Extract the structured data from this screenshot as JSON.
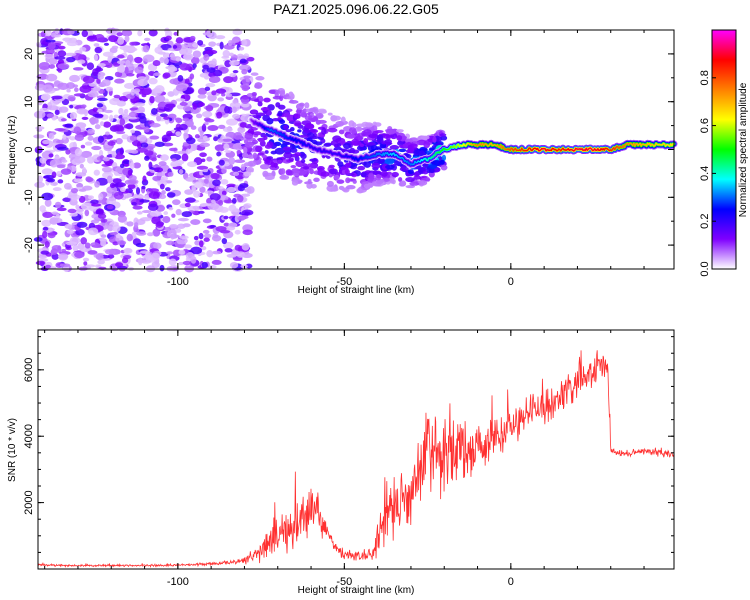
{
  "title": "PAZ1.2025.096.06.22.G05",
  "chart_data": [
    {
      "type": "heatmap",
      "xlabel": "Height of straight line (km)",
      "ylabel": "Frequency (Hz)",
      "xlim": [
        -142,
        49
      ],
      "ylim": [
        -25,
        25
      ],
      "xticks": [
        -100,
        -50,
        0
      ],
      "xtick_labels": [
        "-100",
        "-50",
        "0"
      ],
      "yticks": [
        -20,
        -10,
        0,
        10,
        20
      ],
      "ytick_labels": [
        "-20",
        "-10",
        "0",
        "10",
        "20"
      ],
      "colorbar": {
        "label": "Normalized spectral amplitude",
        "range": [
          0,
          1
        ],
        "ticks": [
          0,
          0.2,
          0.4,
          0.6,
          0.8
        ],
        "tick_labels": [
          "0.0",
          "0.2",
          "0.4",
          "0.6",
          "0.8"
        ],
        "colors": [
          "#ffffff",
          "#7f00ff",
          "#0000ff",
          "#00ffff",
          "#00ff00",
          "#ffff00",
          "#ff8000",
          "#ff0000",
          "#ff00ff"
        ]
      },
      "ridge": {
        "x": [
          -78,
          -72,
          -65,
          -58,
          -52,
          -46,
          -40,
          -35,
          -30,
          -25,
          -20,
          -15,
          -10,
          -5,
          0,
          5,
          10,
          15,
          20,
          25,
          30,
          35,
          40,
          49
        ],
        "freq": [
          6,
          4,
          2,
          0,
          -1,
          -2,
          -1,
          -1,
          -3,
          -2,
          0,
          1,
          1,
          1,
          0,
          0,
          0,
          0,
          0,
          0,
          0,
          1,
          1,
          1
        ],
        "amplitude": [
          0.1,
          0.3,
          0.25,
          0.2,
          0.2,
          0.25,
          0.3,
          0.35,
          0.3,
          0.4,
          0.5,
          0.6,
          0.75,
          0.7,
          0.8,
          0.85,
          0.9,
          0.85,
          0.9,
          0.9,
          0.85,
          0.75,
          0.7,
          0.65
        ]
      },
      "grid": false
    },
    {
      "type": "line",
      "xlabel": "Height of straight line (km)",
      "ylabel": "SNR (10 * v/v)",
      "xlim": [
        -142,
        49
      ],
      "ylim": [
        0,
        7200
      ],
      "xticks": [
        -100,
        -50,
        0
      ],
      "xtick_labels": [
        "-100",
        "-50",
        "0"
      ],
      "yticks": [
        2000,
        4000,
        6000
      ],
      "ytick_labels": [
        "2000",
        "4000",
        "6000"
      ],
      "series": [
        {
          "color": "#ff3030",
          "x": [
            -142,
            -130,
            -120,
            -110,
            -100,
            -90,
            -85,
            -80,
            -77,
            -74,
            -71,
            -68,
            -65,
            -62,
            -60,
            -58,
            -56,
            -54,
            -52,
            -50,
            -48,
            -45,
            -42,
            -40,
            -38,
            -36,
            -34,
            -32,
            -30,
            -28,
            -26,
            -24,
            -22,
            -20,
            -18,
            -16,
            -14,
            -12,
            -10,
            -8,
            -6,
            -4,
            -2,
            0,
            3,
            6,
            9,
            12,
            15,
            18,
            21,
            24,
            27,
            29,
            30,
            31,
            35,
            40,
            45,
            49
          ],
          "y": [
            120,
            100,
            110,
            100,
            120,
            150,
            200,
            250,
            400,
            650,
            1000,
            1200,
            1350,
            1600,
            1850,
            1700,
            1300,
            900,
            550,
            420,
            420,
            380,
            450,
            900,
            1300,
            1700,
            2000,
            2100,
            2500,
            2700,
            3200,
            3600,
            3300,
            3200,
            3500,
            3600,
            3500,
            3400,
            3800,
            3700,
            3800,
            4000,
            4100,
            4300,
            4500,
            4700,
            4800,
            5000,
            5200,
            5500,
            5700,
            5900,
            6100,
            6200,
            3600,
            3500,
            3500,
            3550,
            3500,
            3450
          ],
          "noise": [
            40,
            40,
            40,
            40,
            40,
            60,
            80,
            150,
            300,
            500,
            700,
            800,
            900,
            1000,
            900,
            700,
            500,
            300,
            200,
            150,
            200,
            200,
            300,
            600,
            800,
            1000,
            1100,
            1200,
            1300,
            1500,
            1600,
            1500,
            1300,
            1200,
            1100,
            1000,
            900,
            900,
            900,
            800,
            800,
            800,
            800,
            700,
            700,
            700,
            700,
            700,
            700,
            700,
            700,
            600,
            600,
            600,
            150,
            150,
            150,
            150,
            150,
            150
          ]
        }
      ],
      "grid": false
    }
  ]
}
